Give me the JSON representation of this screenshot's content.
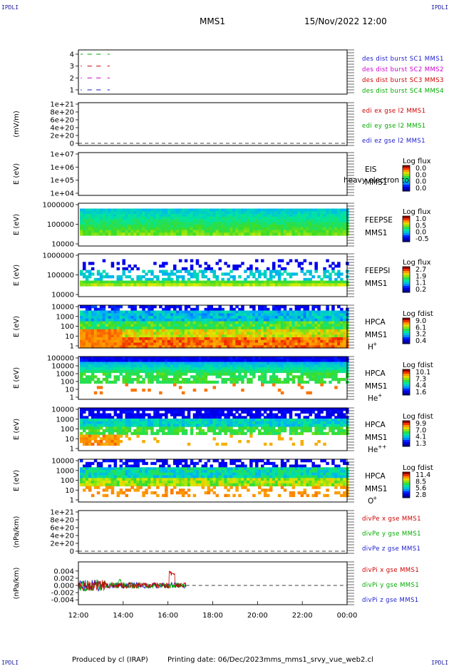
{
  "header": {
    "corner_label": "IPDLI",
    "title": "MMS1",
    "datetime": "15/Nov/2022 12:00"
  },
  "footer": {
    "produced_by": "Produced by cl (IRAP)",
    "printing_date": "Printing date: 06/Dec/2023",
    "script_name": "mms_mms1_srvy_vue_web2.cl"
  },
  "chart_data": {
    "type": "heatmap",
    "x_axis": {
      "ticks": [
        "12:00",
        "14:00",
        "16:00",
        "18:00",
        "20:00",
        "22:00",
        "00:00"
      ],
      "range_hours": [
        12,
        24
      ]
    },
    "panels": [
      {
        "id": "burst",
        "kind": "burst",
        "yticks": [
          "4",
          "3",
          "2",
          "1"
        ],
        "legend": [
          {
            "text": "des dist burst SC1 MMS1",
            "color": "#1a1acc"
          },
          {
            "text": "des dist burst SC2 MMS2",
            "color": "#cc00cc"
          },
          {
            "text": "des dist burst SC3 MMS3",
            "color": "#cc0000"
          },
          {
            "text": "des dist burst SC4 MMS4",
            "color": "#00aa00"
          }
        ],
        "series": [
          {
            "level": 4,
            "color": "#00aa00",
            "segments": [
              [
                12.1,
                12.2
              ],
              [
                12.4,
                12.6
              ],
              [
                12.8,
                13.0
              ],
              [
                13.3,
                13.4
              ]
            ]
          },
          {
            "level": 3,
            "color": "#cc0000",
            "segments": [
              [
                12.1,
                12.15
              ],
              [
                12.4,
                12.6
              ],
              [
                12.8,
                13.0
              ],
              [
                13.3,
                13.4
              ]
            ]
          },
          {
            "level": 2,
            "color": "#cc00cc",
            "segments": [
              [
                12.1,
                12.15
              ],
              [
                12.4,
                12.6
              ],
              [
                12.8,
                13.0
              ],
              [
                13.3,
                13.4
              ]
            ]
          },
          {
            "level": 1,
            "color": "#1a1acc",
            "segments": [
              [
                12.1,
                12.15
              ],
              [
                12.4,
                12.6
              ],
              [
                12.8,
                13.0
              ],
              [
                13.3,
                13.4
              ]
            ]
          }
        ]
      },
      {
        "id": "edi",
        "kind": "empty",
        "ylabel": "(mV/m)",
        "yticks": [
          "1e+21",
          "8e+20",
          "6e+20",
          "4e+20",
          "2e+20",
          "0"
        ],
        "legend": [
          {
            "text": "edi ex gse l2 MMS1",
            "color": "#cc0000"
          },
          {
            "text": "edi ey gse l2 MMS1",
            "color": "#00aa00"
          },
          {
            "text": "edi ez gse l2 MMS1",
            "color": "#1a1acc"
          }
        ]
      },
      {
        "id": "eis",
        "kind": "spectro",
        "ylabel": "E (eV)",
        "yticks": [
          "1e+07",
          "1e+06",
          "1e+05",
          "1e+04"
        ],
        "labels": [
          "EIS",
          "MMS1"
        ],
        "overlay": "heavy electron to",
        "cbar_title": "Log flux",
        "cbar_ticks": [
          "0.0",
          "0.0",
          "0.0",
          "0.0"
        ],
        "profile": "none"
      },
      {
        "id": "feepse",
        "kind": "spectro",
        "ylabel": "E (eV)",
        "yticks": [
          "1000000",
          "100000",
          "10000"
        ],
        "labels": [
          "FEEPSE",
          "MMS1"
        ],
        "cbar_title": "Log flux",
        "cbar_ticks": [
          "1.0",
          "0.5",
          "0.0",
          "-0.5"
        ],
        "profile": "feepse"
      },
      {
        "id": "feepsi",
        "kind": "spectro",
        "ylabel": "E (eV)",
        "yticks": [
          "1000000",
          "100000",
          "10000"
        ],
        "labels": [
          "FEEPSI",
          "MMS1"
        ],
        "cbar_title": "Log flux",
        "cbar_ticks": [
          "2.7",
          "1.9",
          "1.1",
          "0.2"
        ],
        "profile": "feepsi"
      },
      {
        "id": "hpca_h",
        "kind": "spectro",
        "ylabel": "E (eV)",
        "yticks": [
          "10000",
          "1000",
          "100",
          "10",
          "1"
        ],
        "labels": [
          "HPCA",
          "MMS1"
        ],
        "species": "H",
        "species_sup": "+",
        "cbar_title": "Log fdist",
        "cbar_ticks": [
          "9.0",
          "6.1",
          "3.2",
          "0.4"
        ],
        "profile": "h"
      },
      {
        "id": "hpca_he",
        "kind": "spectro",
        "ylabel": "E (eV)",
        "yticks": [
          "100000",
          "10000",
          "1000",
          "100",
          "10",
          "1"
        ],
        "labels": [
          "HPCA",
          "MMS1"
        ],
        "species": "He",
        "species_sup": "+",
        "cbar_title": "Log fdist",
        "cbar_ticks": [
          "10.1",
          "7.3",
          "4.4",
          "1.6"
        ],
        "profile": "he"
      },
      {
        "id": "hpca_he2",
        "kind": "spectro",
        "ylabel": "E (eV)",
        "yticks": [
          "10000",
          "1000",
          "100",
          "10",
          "1"
        ],
        "labels": [
          "HPCA",
          "MMS1"
        ],
        "species": "He",
        "species_sup": "++",
        "cbar_title": "Log fdist",
        "cbar_ticks": [
          "9.9",
          "7.0",
          "4.1",
          "1.3"
        ],
        "profile": "he2"
      },
      {
        "id": "hpca_o",
        "kind": "spectro",
        "ylabel": "E (eV)",
        "yticks": [
          "10000",
          "1000",
          "100",
          "10",
          "1"
        ],
        "labels": [
          "HPCA",
          "MMS1"
        ],
        "species": "O",
        "species_sup": "+",
        "cbar_title": "Log fdist",
        "cbar_ticks": [
          "11.4",
          "8.5",
          "5.6",
          "2.8"
        ],
        "profile": "o"
      },
      {
        "id": "divpe",
        "kind": "empty",
        "ylabel": "(nPa/km)",
        "yticks": [
          "1e+21",
          "8e+20",
          "6e+20",
          "4e+20",
          "2e+20",
          "0"
        ],
        "legend": [
          {
            "text": "divPe x gse MMS1",
            "color": "#cc0000"
          },
          {
            "text": "divPe y gse MMS1",
            "color": "#00aa00"
          },
          {
            "text": "divPe z gse MMS1",
            "color": "#1a1acc"
          }
        ]
      },
      {
        "id": "divpi",
        "kind": "line",
        "ylabel": "(nPa/km)",
        "yticks": [
          "0.004",
          "0.002",
          "0.000",
          "-0.002",
          "-0.004"
        ],
        "ylim": [
          -0.005,
          0.005
        ],
        "data_end_hour": 16.8,
        "legend": [
          {
            "text": "divPi x gse MMS1",
            "color": "#cc0000"
          },
          {
            "text": "divPi y gse MMS1",
            "color": "#00aa00"
          },
          {
            "text": "divPi z gse MMS1",
            "color": "#1a1acc"
          }
        ]
      }
    ]
  }
}
